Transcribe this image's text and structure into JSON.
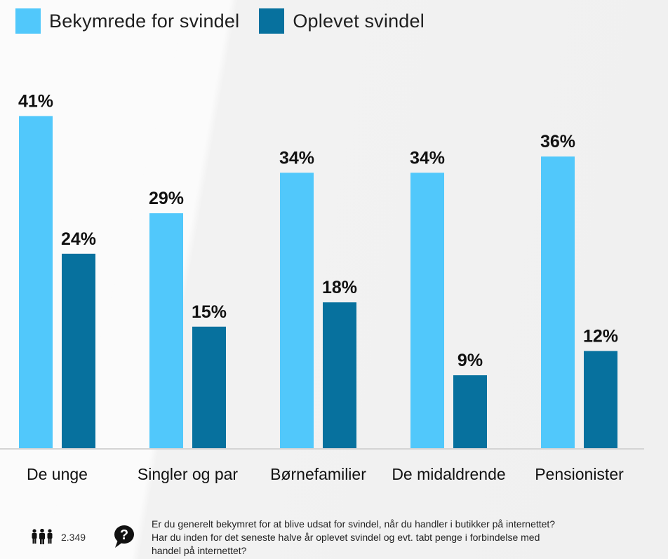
{
  "legend": [
    {
      "label": "Bekymrede for svindel",
      "color": "#51c8fb"
    },
    {
      "label": "Oplevet svindel",
      "color": "#07719e"
    }
  ],
  "chart_data": {
    "type": "bar",
    "title": "",
    "xlabel": "",
    "ylabel": "",
    "ylim": [
      0,
      42
    ],
    "grid": false,
    "legend_position": "top-left",
    "categories": [
      "De unge",
      "Singler og par",
      "Børnefamilier",
      "De midaldrende",
      "Pensionister"
    ],
    "series": [
      {
        "name": "Bekymrede for svindel",
        "color": "#51c8fb",
        "values": [
          41,
          29,
          34,
          34,
          36
        ],
        "labels": [
          "41%",
          "29%",
          "34%",
          "34%",
          "36%"
        ]
      },
      {
        "name": "Oplevet svindel",
        "color": "#07719e",
        "values": [
          24,
          15,
          18,
          9,
          12
        ],
        "labels": [
          "24%",
          "15%",
          "18%",
          "9%",
          "12%"
        ]
      }
    ]
  },
  "footer": {
    "people_icon": "people-icon",
    "sample_size": "2.349",
    "question_icon": "question-speech-bubble-icon",
    "question_lines": [
      "Er du generelt bekymret for at blive udsat for svindel, når du handler i butikker på internettet?",
      "Har du inden for det seneste halve år oplevet svindel og evt. tabt penge i forbindelse med",
      "handel på internettet?"
    ]
  }
}
